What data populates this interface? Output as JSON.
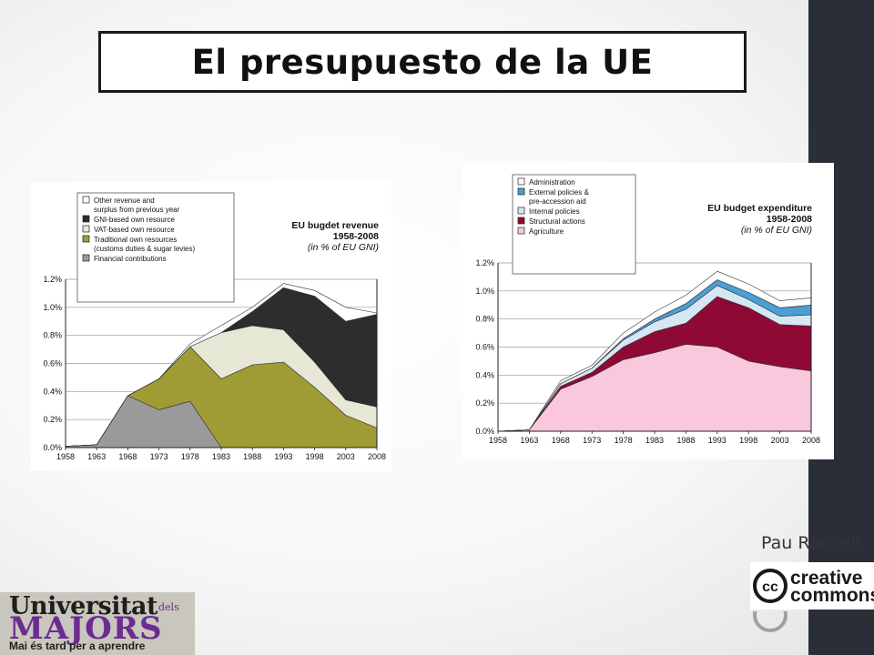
{
  "slide": {
    "title": "El presupuesto de la UE",
    "author": "Pau Rausell"
  },
  "creative_commons": {
    "text_top": "creative",
    "text_bottom": "commons",
    "cc_mark": "cc"
  },
  "university_logo": {
    "line1": "Universitat",
    "dels": "dels",
    "line2": "MAJORS",
    "line3": "Mai és tard per a aprendre"
  },
  "colors": {
    "revenue": {
      "other": "#ffffff",
      "gni": "#2d2d2d",
      "vat": "#e6e7d5",
      "traditional": "#9f9c35",
      "financial": "#9a9a9a"
    },
    "expenditure": {
      "administration": "#ffffff",
      "external": "#4a9fd4",
      "internal": "#d6e7f4",
      "structural": "#8e0a35",
      "agriculture": "#f9c8dc"
    }
  },
  "chart_data": [
    {
      "type": "area",
      "stacked": true,
      "title": "EU bugdet revenue",
      "subtitle": "1958-2008",
      "unit_note": "(in % of EU GNI)",
      "x": [
        1958,
        1963,
        1968,
        1973,
        1978,
        1983,
        1988,
        1993,
        1998,
        2003,
        2008
      ],
      "x_tick_labels": [
        "1958",
        "1963",
        "1968",
        "1973",
        "1978",
        "1983",
        "1988",
        "1993",
        "1998",
        "2003",
        "2008"
      ],
      "ylim": [
        0,
        1.2
      ],
      "y_ticks": [
        0,
        0.2,
        0.4,
        0.6,
        0.8,
        1.0,
        1.2
      ],
      "y_tick_labels": [
        "0.0%",
        "0.2%",
        "0.4%",
        "0.6%",
        "0.8%",
        "1.0%",
        "1.2%"
      ],
      "grid": true,
      "legend_position": "top-left",
      "series": [
        {
          "key": "financial",
          "name": "Financial contributions",
          "values": [
            0.01,
            0.02,
            0.37,
            0.27,
            0.33,
            0.0,
            0.0,
            0.0,
            0.0,
            0.0,
            0.0
          ]
        },
        {
          "key": "traditional",
          "name": "Traditional own resources",
          "name_line2": "(customs duties & sugar levies)",
          "values": [
            0.0,
            0.0,
            0.0,
            0.22,
            0.39,
            0.49,
            0.59,
            0.61,
            0.43,
            0.23,
            0.14
          ]
        },
        {
          "key": "vat",
          "name": "VAT-based own resource",
          "values": [
            0.0,
            0.0,
            0.0,
            0.0,
            0.0,
            0.33,
            0.28,
            0.23,
            0.18,
            0.11,
            0.15
          ]
        },
        {
          "key": "gni",
          "name": "GNI-based own resource",
          "values": [
            0.0,
            0.0,
            0.0,
            0.0,
            0.0,
            0.0,
            0.1,
            0.3,
            0.47,
            0.56,
            0.66
          ]
        },
        {
          "key": "other",
          "name": "Other revenue and",
          "name_line2": "surplus from previous year",
          "values": [
            0.0,
            0.0,
            0.0,
            0.0,
            0.02,
            0.05,
            0.03,
            0.03,
            0.04,
            0.1,
            0.01
          ]
        }
      ]
    },
    {
      "type": "area",
      "stacked": true,
      "title": "EU budget expenditure",
      "subtitle": "1958-2008",
      "unit_note": "(in % of EU GNI)",
      "x": [
        1958,
        1963,
        1968,
        1973,
        1978,
        1983,
        1988,
        1993,
        1998,
        2003,
        2008
      ],
      "x_tick_labels": [
        "1958",
        "1963",
        "1968",
        "1973",
        "1978",
        "1983",
        "1988",
        "1993",
        "1998",
        "2003",
        "2008"
      ],
      "ylim": [
        0,
        1.2
      ],
      "y_ticks": [
        0,
        0.2,
        0.4,
        0.6,
        0.8,
        1.0,
        1.2
      ],
      "y_tick_labels": [
        "0.0%",
        "0.2%",
        "0.4%",
        "0.6%",
        "0.8%",
        "1.0%",
        "1.2%"
      ],
      "grid": true,
      "legend_position": "top-left",
      "series": [
        {
          "key": "agriculture",
          "name": "Agriculture",
          "values": [
            0.0,
            0.01,
            0.3,
            0.39,
            0.51,
            0.56,
            0.62,
            0.6,
            0.5,
            0.46,
            0.43
          ]
        },
        {
          "key": "structural",
          "name": "Structural actions",
          "values": [
            0.0,
            0.0,
            0.02,
            0.03,
            0.09,
            0.15,
            0.15,
            0.36,
            0.38,
            0.3,
            0.32
          ]
        },
        {
          "key": "internal",
          "name": "Internal policies",
          "values": [
            0.0,
            0.0,
            0.02,
            0.03,
            0.05,
            0.07,
            0.1,
            0.08,
            0.06,
            0.06,
            0.08
          ]
        },
        {
          "key": "external",
          "name": "External policies &",
          "name_line2": "pre-accession aid",
          "values": [
            0.0,
            0.0,
            0.0,
            0.0,
            0.01,
            0.02,
            0.04,
            0.04,
            0.05,
            0.06,
            0.07
          ]
        },
        {
          "key": "administration",
          "name": "Administration",
          "values": [
            0.0,
            0.0,
            0.02,
            0.02,
            0.04,
            0.05,
            0.06,
            0.06,
            0.06,
            0.05,
            0.05
          ]
        }
      ]
    }
  ]
}
